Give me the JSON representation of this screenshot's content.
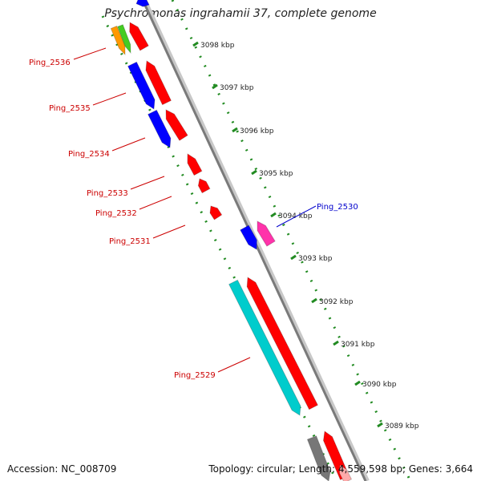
{
  "title": "Psychromonas ingrahamii 37, complete genome",
  "accession": "Accession: NC_008709",
  "topology": "Topology: circular; Length: 4,559,598 bp; Genes: 3,664",
  "colors": {
    "forward_gene": "#ff0000",
    "reverse_gene": "#0000ff",
    "cyan_gene": "#00cccc",
    "magenta_gene": "#ff33aa",
    "orange_gene": "#ff9900",
    "green_gene": "#44cc22",
    "gray_gene": "#777777",
    "tick": "#228B22",
    "label_red": "#cc0000",
    "label_blue": "#0000cc"
  },
  "scale_ticks": [
    {
      "label": "3098 kbp",
      "kbp": 3098
    },
    {
      "label": "3097 kbp",
      "kbp": 3097
    },
    {
      "label": "3096 kbp",
      "kbp": 3096
    },
    {
      "label": "3095 kbp",
      "kbp": 3095
    },
    {
      "label": "3094 kbp",
      "kbp": 3094
    },
    {
      "label": "3093 kbp",
      "kbp": 3093
    },
    {
      "label": "3092 kbp",
      "kbp": 3092
    },
    {
      "label": "3091 kbp",
      "kbp": 3091
    },
    {
      "label": "3090 kbp",
      "kbp": 3090
    },
    {
      "label": "3089 kbp",
      "kbp": 3089
    }
  ],
  "gene_labels": [
    {
      "name": "Ping_2536",
      "color": "red"
    },
    {
      "name": "Ping_2535",
      "color": "red"
    },
    {
      "name": "Ping_2534",
      "color": "red"
    },
    {
      "name": "Ping_2533",
      "color": "red"
    },
    {
      "name": "Ping_2532",
      "color": "red"
    },
    {
      "name": "Ping_2531",
      "color": "red"
    },
    {
      "name": "Ping_2530",
      "color": "blue"
    },
    {
      "name": "Ping_2529",
      "color": "red"
    }
  ]
}
